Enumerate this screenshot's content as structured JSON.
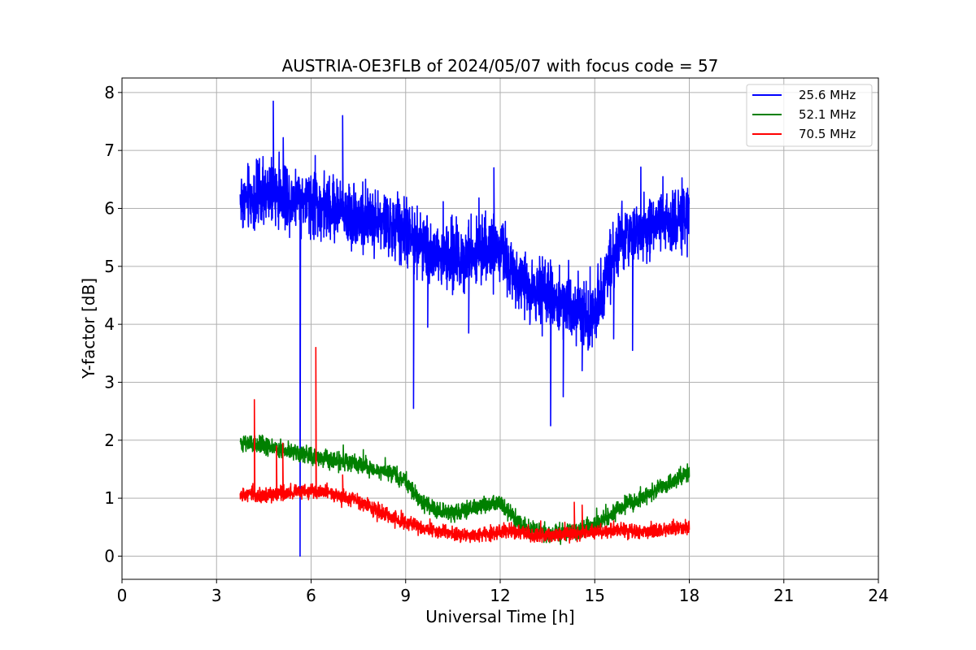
{
  "chart_data": {
    "type": "line",
    "title": "AUSTRIA-OE3FLB of 2024/05/07 with focus code = 57",
    "xlabel": "Universal Time [h]",
    "ylabel": "Y-factor [dB]",
    "xlim": [
      0,
      24
    ],
    "ylim": [
      -0.4,
      8.25
    ],
    "xticks": [
      0,
      3,
      6,
      9,
      12,
      15,
      18,
      21,
      24
    ],
    "xtick_labels": [
      "0",
      "3",
      "6",
      "9",
      "12",
      "15",
      "18",
      "21",
      "24"
    ],
    "yticks": [
      0,
      1,
      2,
      3,
      4,
      5,
      6,
      7,
      8
    ],
    "ytick_labels": [
      "0",
      "1",
      "2",
      "3",
      "4",
      "5",
      "6",
      "7",
      "8"
    ],
    "grid": true,
    "legend_position": "top-right",
    "series": [
      {
        "name": "25.6 MHz",
        "color": "#0000ff",
        "noise_amplitude": 0.45,
        "x": [
          3.75,
          4.5,
          5.0,
          5.5,
          6.0,
          6.5,
          7.0,
          7.5,
          8.0,
          8.5,
          9.0,
          9.5,
          10.0,
          10.5,
          11.0,
          11.5,
          12.0,
          12.5,
          13.0,
          13.5,
          14.0,
          14.5,
          14.8,
          15.2,
          15.6,
          16.0,
          16.5,
          17.0,
          17.5,
          18.0
        ],
        "y": [
          6.15,
          6.2,
          6.25,
          6.2,
          6.1,
          6.0,
          5.95,
          5.85,
          5.8,
          5.7,
          5.55,
          5.35,
          5.2,
          5.15,
          5.2,
          5.3,
          5.2,
          4.9,
          4.6,
          4.45,
          4.4,
          4.3,
          4.0,
          4.5,
          5.2,
          5.5,
          5.6,
          5.7,
          5.8,
          5.9
        ],
        "spikes": [
          {
            "x": 4.8,
            "y": 7.85
          },
          {
            "x": 5.65,
            "y": 0.0
          },
          {
            "x": 7.0,
            "y": 7.6
          },
          {
            "x": 9.25,
            "y": 2.55
          },
          {
            "x": 9.7,
            "y": 3.95
          },
          {
            "x": 11.0,
            "y": 3.85
          },
          {
            "x": 11.8,
            "y": 6.7
          },
          {
            "x": 13.6,
            "y": 2.25
          },
          {
            "x": 14.0,
            "y": 2.75
          },
          {
            "x": 14.6,
            "y": 3.2
          },
          {
            "x": 15.6,
            "y": 3.75
          },
          {
            "x": 16.2,
            "y": 3.55
          }
        ]
      },
      {
        "name": "52.1 MHz",
        "color": "#008000",
        "noise_amplitude": 0.12,
        "x": [
          3.75,
          4.5,
          5.0,
          5.5,
          6.0,
          6.5,
          7.0,
          7.5,
          8.0,
          8.5,
          9.0,
          9.5,
          10.0,
          10.5,
          11.0,
          11.5,
          12.0,
          12.5,
          13.0,
          13.5,
          14.0,
          14.5,
          15.0,
          15.5,
          16.0,
          16.5,
          17.0,
          17.5,
          18.0
        ],
        "y": [
          1.95,
          1.9,
          1.85,
          1.78,
          1.72,
          1.68,
          1.62,
          1.58,
          1.5,
          1.45,
          1.3,
          0.95,
          0.78,
          0.75,
          0.8,
          0.88,
          0.92,
          0.6,
          0.45,
          0.4,
          0.38,
          0.45,
          0.55,
          0.7,
          0.88,
          1.0,
          1.15,
          1.3,
          1.45
        ],
        "spikes": []
      },
      {
        "name": "70.5 MHz",
        "color": "#ff0000",
        "noise_amplitude": 0.1,
        "x": [
          3.75,
          4.5,
          5.0,
          5.5,
          6.0,
          6.5,
          7.0,
          7.5,
          8.0,
          8.5,
          9.0,
          9.5,
          10.0,
          10.5,
          11.0,
          11.5,
          12.0,
          12.5,
          13.0,
          13.5,
          14.0,
          14.5,
          15.0,
          15.5,
          16.0,
          16.5,
          17.0,
          17.5,
          18.0
        ],
        "y": [
          1.05,
          1.05,
          1.08,
          1.1,
          1.12,
          1.1,
          1.02,
          0.95,
          0.8,
          0.68,
          0.58,
          0.48,
          0.42,
          0.38,
          0.35,
          0.38,
          0.42,
          0.45,
          0.36,
          0.35,
          0.38,
          0.4,
          0.42,
          0.44,
          0.45,
          0.42,
          0.45,
          0.48,
          0.5
        ],
        "spikes": [
          {
            "x": 4.2,
            "y": 2.7
          },
          {
            "x": 4.9,
            "y": 1.9
          },
          {
            "x": 5.1,
            "y": 1.95
          },
          {
            "x": 6.15,
            "y": 3.6
          },
          {
            "x": 7.0,
            "y": 1.4
          },
          {
            "x": 14.35,
            "y": 0.93
          },
          {
            "x": 14.6,
            "y": 0.88
          }
        ]
      }
    ]
  }
}
